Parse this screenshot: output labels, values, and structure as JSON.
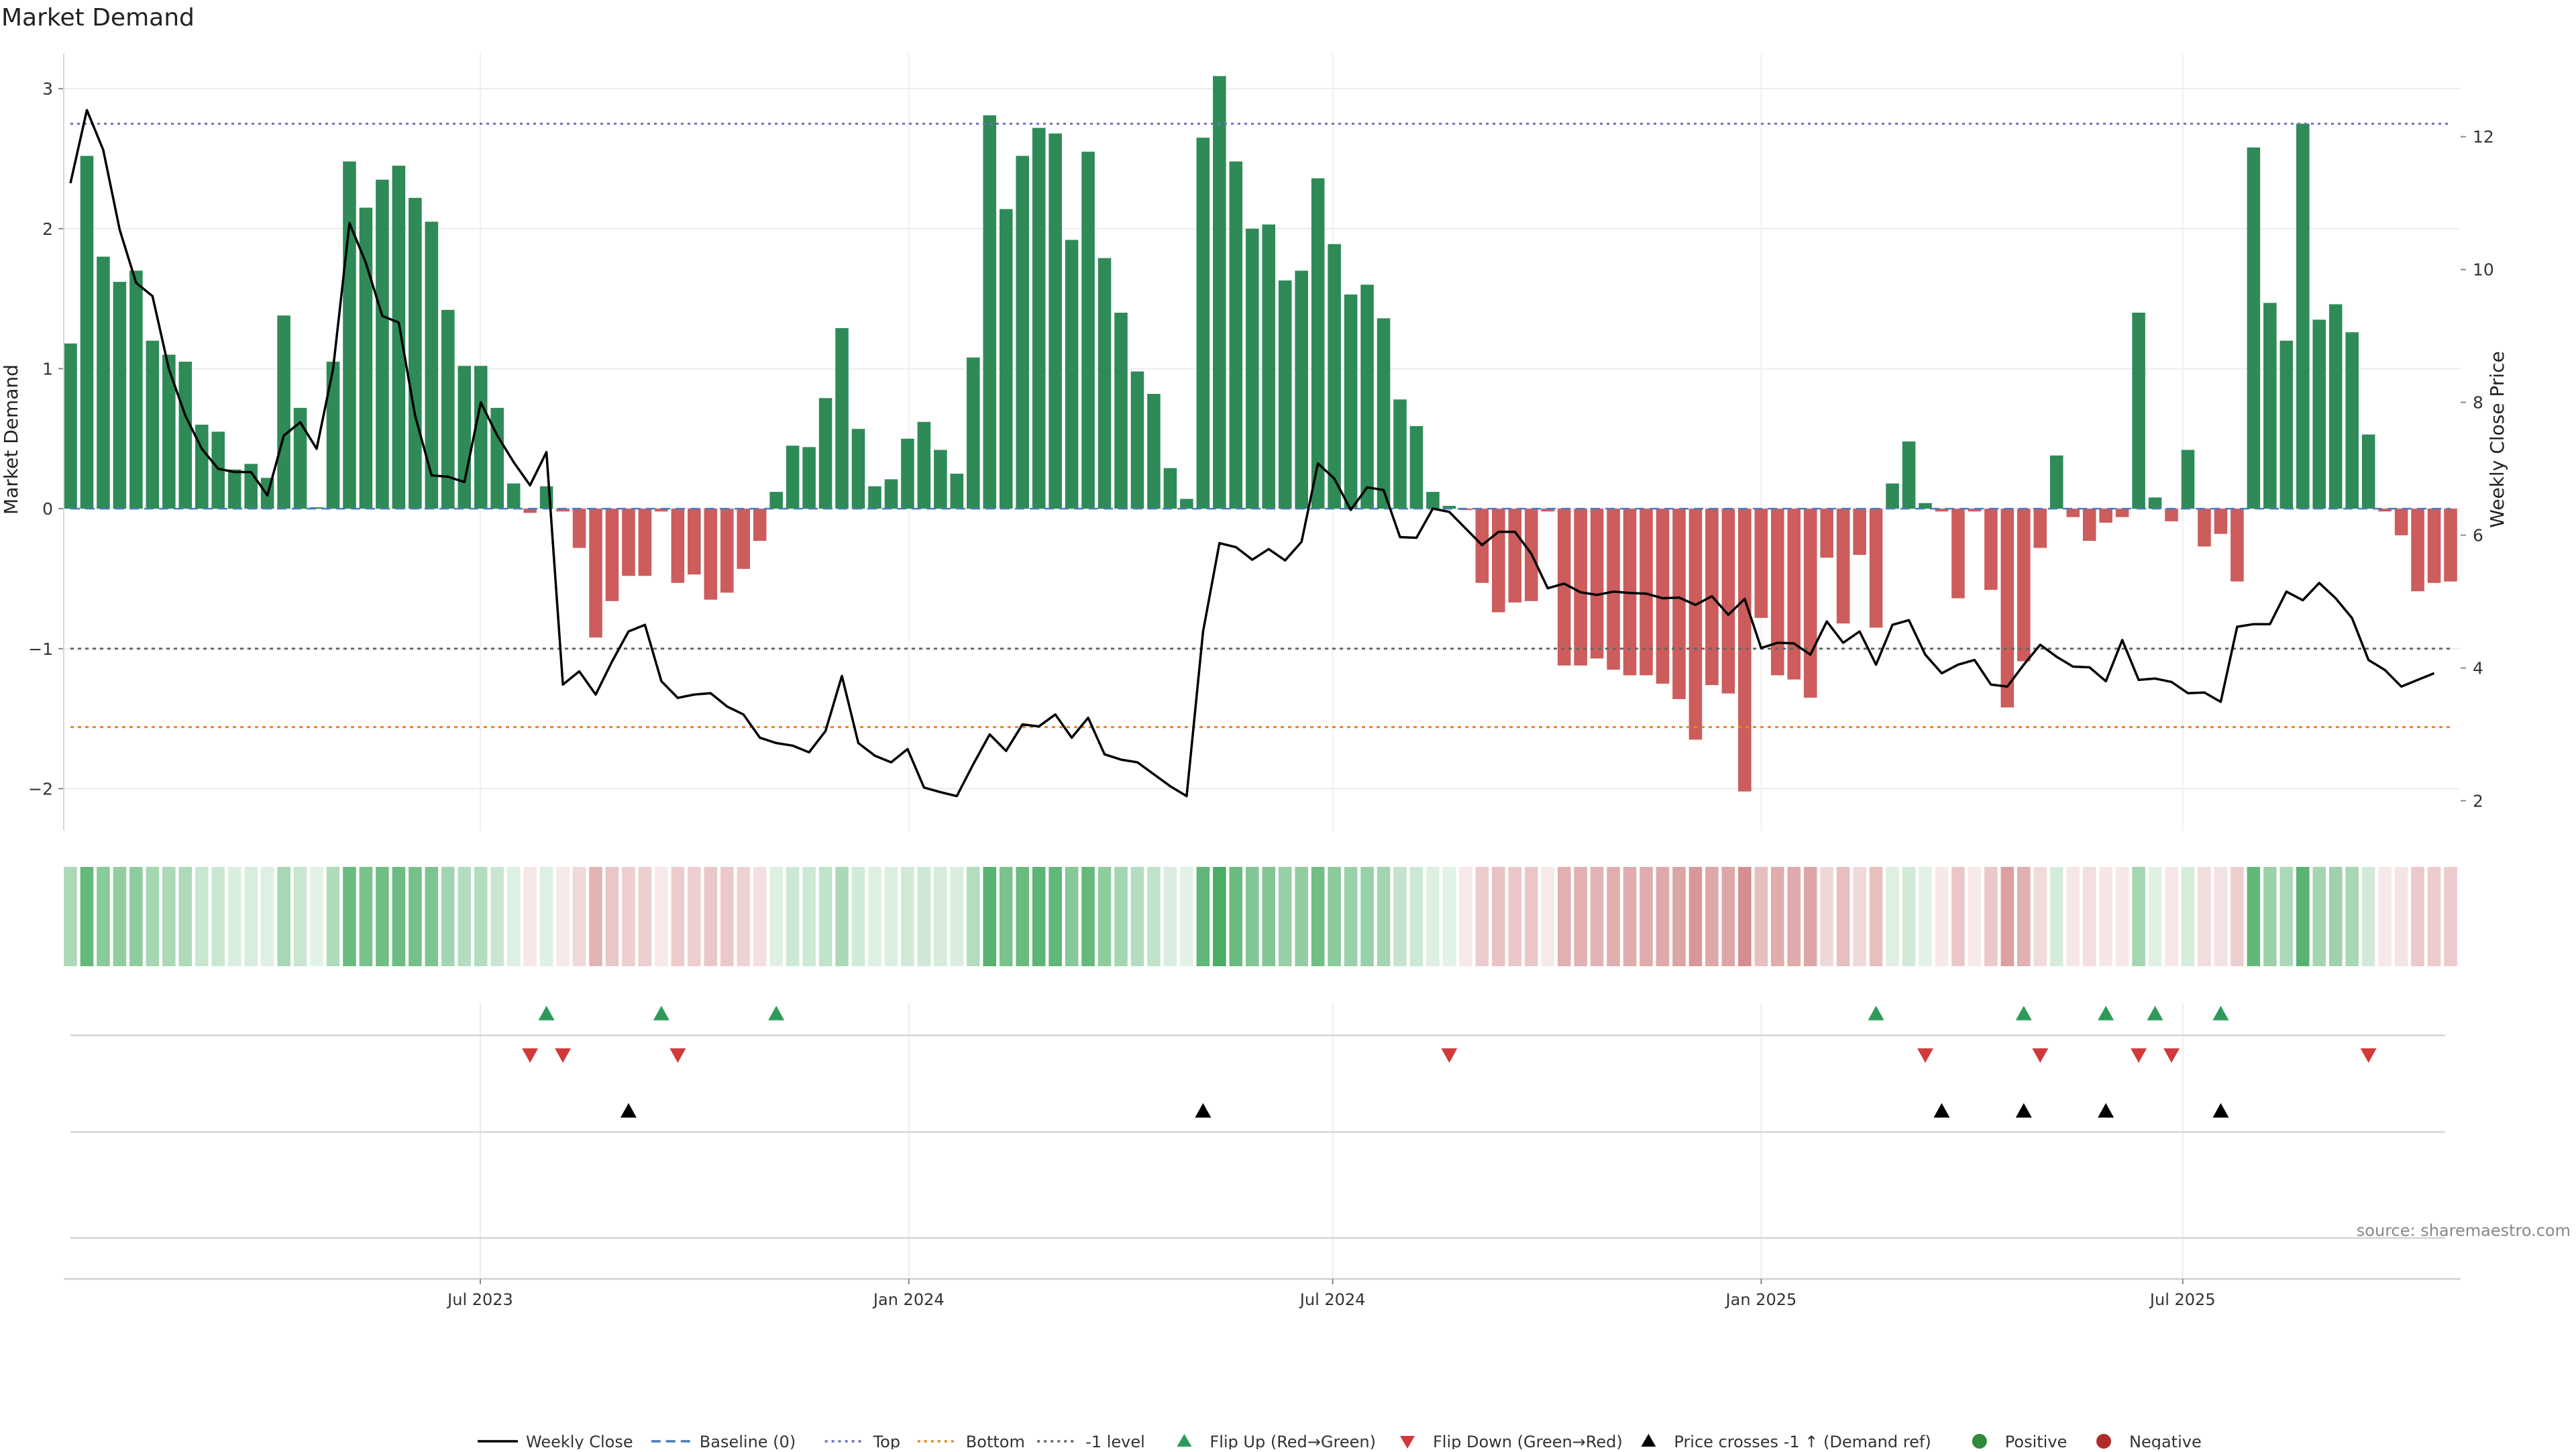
{
  "chart_data": {
    "type": "bar",
    "title": "Market Demand",
    "ylabel_left": "Market Demand",
    "ylabel_right": "Weekly Close Price",
    "source": "source: sharemaestro.com",
    "ylim_left": [
      -2.3,
      3.25
    ],
    "ylim_right": [
      1.55,
      13.25
    ],
    "yticks_left": [
      3,
      2,
      1,
      0,
      -1,
      -2
    ],
    "ytick_labels_left": [
      "3",
      "2",
      "1",
      "0",
      "−1",
      "−2"
    ],
    "yticks_right": [
      12,
      10,
      8,
      6,
      4,
      2
    ],
    "ytick_labels_right": [
      "12",
      "10",
      "8",
      "6",
      "4",
      "2"
    ],
    "start_date": "2023-01-06",
    "end_date": "2025-10-24",
    "x_ticks": [
      {
        "label": "Jul 2023",
        "date": "2023-07-01"
      },
      {
        "label": "Jan 2024",
        "date": "2024-01-01"
      },
      {
        "label": "Jul 2024",
        "date": "2024-07-01"
      },
      {
        "label": "Jan 2025",
        "date": "2025-01-01"
      },
      {
        "label": "Jul 2025",
        "date": "2025-07-01"
      }
    ],
    "reference_lines": {
      "baseline": 0,
      "top": 2.75,
      "bottom": -1.56,
      "minus_one": -1
    },
    "demand": [
      1.18,
      2.52,
      1.8,
      1.62,
      1.7,
      1.2,
      1.1,
      1.05,
      0.6,
      0.55,
      0.28,
      0.32,
      0.22,
      1.38,
      0.72,
      0.01,
      1.05,
      2.48,
      2.15,
      2.35,
      2.45,
      2.22,
      2.05,
      1.42,
      1.02,
      1.02,
      0.72,
      0.18,
      -0.03,
      0.16,
      -0.02,
      -0.28,
      -0.92,
      -0.66,
      -0.48,
      -0.48,
      -0.02,
      -0.53,
      -0.47,
      -0.65,
      -0.6,
      -0.43,
      -0.23,
      0.12,
      0.45,
      0.44,
      0.79,
      1.29,
      0.57,
      0.16,
      0.21,
      0.5,
      0.62,
      0.42,
      0.25,
      1.08,
      2.81,
      2.14,
      2.52,
      2.72,
      2.68,
      1.92,
      2.55,
      1.79,
      1.4,
      0.98,
      0.82,
      0.29,
      0.07,
      2.65,
      3.09,
      2.48,
      2.0,
      2.03,
      1.63,
      1.7,
      2.36,
      1.89,
      1.53,
      1.6,
      1.36,
      0.78,
      0.59,
      0.12,
      0.02,
      -0.01,
      -0.53,
      -0.74,
      -0.67,
      -0.66,
      -0.02,
      -1.12,
      -1.12,
      -1.07,
      -1.15,
      -1.19,
      -1.19,
      -1.25,
      -1.36,
      -1.65,
      -1.26,
      -1.32,
      -2.02,
      -0.78,
      -1.19,
      -1.22,
      -1.35,
      -0.35,
      -0.82,
      -0.33,
      -0.85,
      0.18,
      0.48,
      0.04,
      -0.02,
      -0.64,
      -0.02,
      -0.58,
      -1.42,
      -1.09,
      -0.28,
      0.38,
      -0.06,
      -0.23,
      -0.1,
      -0.06,
      1.4,
      0.08,
      -0.09,
      0.42,
      -0.27,
      -0.18,
      -0.52,
      2.58,
      1.47,
      1.2,
      2.75,
      1.35,
      1.46,
      1.26,
      0.53,
      -0.02,
      -0.19,
      -0.59,
      -0.53,
      -0.52
    ],
    "close": [
      11.3,
      12.4,
      11.8,
      10.6,
      9.8,
      9.6,
      8.5,
      7.8,
      7.3,
      7.0,
      6.95,
      6.95,
      6.6,
      7.5,
      7.7,
      7.3,
      8.5,
      10.7,
      10.1,
      9.3,
      9.2,
      7.8,
      6.9,
      6.88,
      6.8,
      8.0,
      7.5,
      7.1,
      6.75,
      7.25,
      3.75,
      3.95,
      3.6,
      4.1,
      4.55,
      4.65,
      3.8,
      3.55,
      3.6,
      3.62,
      3.42,
      3.3,
      2.95,
      2.87,
      2.83,
      2.73,
      3.05,
      3.88,
      2.87,
      2.68,
      2.58,
      2.78,
      2.2,
      2.13,
      2.07,
      2.55,
      3.0,
      2.75,
      3.15,
      3.12,
      3.3,
      2.95,
      3.25,
      2.7,
      2.62,
      2.58,
      2.4,
      2.22,
      2.07,
      4.55,
      5.88,
      5.82,
      5.63,
      5.79,
      5.62,
      5.9,
      7.08,
      6.85,
      6.38,
      6.72,
      6.68,
      5.97,
      5.96,
      6.4,
      6.35,
      6.1,
      5.85,
      6.05,
      6.05,
      5.72,
      5.2,
      5.27,
      5.14,
      5.1,
      5.15,
      5.13,
      5.12,
      5.05,
      5.06,
      4.95,
      5.08,
      4.8,
      5.04,
      4.3,
      4.38,
      4.37,
      4.2,
      4.7,
      4.38,
      4.55,
      4.05,
      4.65,
      4.72,
      4.2,
      3.92,
      4.05,
      4.12,
      3.75,
      3.72,
      4.05,
      4.35,
      4.17,
      4.02,
      4.01,
      3.8,
      4.42,
      3.82,
      3.84,
      3.79,
      3.62,
      3.63,
      3.49,
      4.62,
      4.66,
      4.66,
      5.15,
      5.02,
      5.28,
      5.05,
      4.75,
      4.12,
      3.97,
      3.72,
      3.82,
      3.92
    ],
    "heat": [
      0.4,
      0.74,
      0.56,
      0.52,
      0.54,
      0.43,
      0.4,
      0.39,
      0.26,
      0.25,
      0.18,
      0.19,
      0.16,
      0.42,
      0.26,
      0.14,
      0.38,
      0.72,
      0.64,
      0.68,
      0.7,
      0.66,
      0.62,
      0.44,
      0.36,
      0.36,
      0.26,
      0.16,
      -0.15,
      0.16,
      -0.14,
      -0.24,
      -0.47,
      -0.36,
      -0.3,
      -0.3,
      -0.14,
      -0.32,
      -0.3,
      -0.35,
      -0.34,
      -0.28,
      -0.2,
      0.16,
      0.24,
      0.24,
      0.3,
      0.4,
      0.22,
      0.16,
      0.17,
      0.22,
      0.24,
      0.2,
      0.18,
      0.36,
      0.8,
      0.64,
      0.72,
      0.78,
      0.76,
      0.58,
      0.74,
      0.54,
      0.44,
      0.36,
      0.3,
      0.18,
      0.14,
      0.76,
      0.86,
      0.72,
      0.6,
      0.6,
      0.5,
      0.52,
      0.68,
      0.56,
      0.48,
      0.5,
      0.44,
      0.28,
      0.24,
      0.16,
      0.14,
      -0.14,
      -0.32,
      -0.38,
      -0.36,
      -0.36,
      -0.14,
      -0.5,
      -0.5,
      -0.48,
      -0.51,
      -0.52,
      -0.52,
      -0.54,
      -0.57,
      -0.65,
      -0.55,
      -0.56,
      -0.72,
      -0.4,
      -0.52,
      -0.53,
      -0.56,
      -0.25,
      -0.4,
      -0.24,
      -0.4,
      0.16,
      0.22,
      0.14,
      -0.14,
      -0.35,
      -0.14,
      -0.34,
      -0.6,
      -0.5,
      -0.23,
      0.2,
      -0.15,
      -0.2,
      -0.16,
      -0.15,
      0.43,
      0.15,
      -0.16,
      0.2,
      -0.22,
      -0.18,
      -0.31,
      0.75,
      0.48,
      0.4,
      0.8,
      0.44,
      0.47,
      0.42,
      0.22,
      -0.14,
      -0.17,
      -0.34,
      -0.32,
      -0.32
    ],
    "flip_up": [
      29,
      36,
      43,
      110,
      119,
      124,
      127,
      131
    ],
    "flip_down": [
      28,
      30,
      37,
      84,
      113,
      120,
      126,
      128,
      140
    ],
    "price_cross": [
      34,
      69,
      114,
      119,
      124,
      131
    ],
    "legend": [
      {
        "label": "Weekly Close",
        "style": "line",
        "color": "#000000"
      },
      {
        "label": "Baseline (0)",
        "style": "dash",
        "color": "#4a7cb8"
      },
      {
        "label": "Top",
        "style": "dot",
        "color": "#6f6fc8"
      },
      {
        "label": "Bottom",
        "style": "dot",
        "color": "#e08b2a"
      },
      {
        "label": "-1 level",
        "style": "dot",
        "color": "#666666"
      },
      {
        "label": "Flip Up (Red→Green)",
        "style": "tri-up",
        "color": "#2e9a5a"
      },
      {
        "label": "Flip Down (Green→Red)",
        "style": "tri-down",
        "color": "#d03a3a"
      },
      {
        "label": "Price crosses -1 ↑ (Demand ref)",
        "style": "tri-up",
        "color": "#000000"
      },
      {
        "label": "Positive",
        "style": "circle",
        "color": "#2e8b3a"
      },
      {
        "label": "Negative",
        "style": "circle",
        "color": "#b02a2a"
      }
    ],
    "colors": {
      "positive_bar": "#2e8b57",
      "negative_bar": "#cd5c5c",
      "close_line": "#000000",
      "top_line": "#6f6fc8",
      "bottom_line": "#e08b2a",
      "minus_one_line": "#666666",
      "baseline": "#4a7cb8"
    }
  }
}
